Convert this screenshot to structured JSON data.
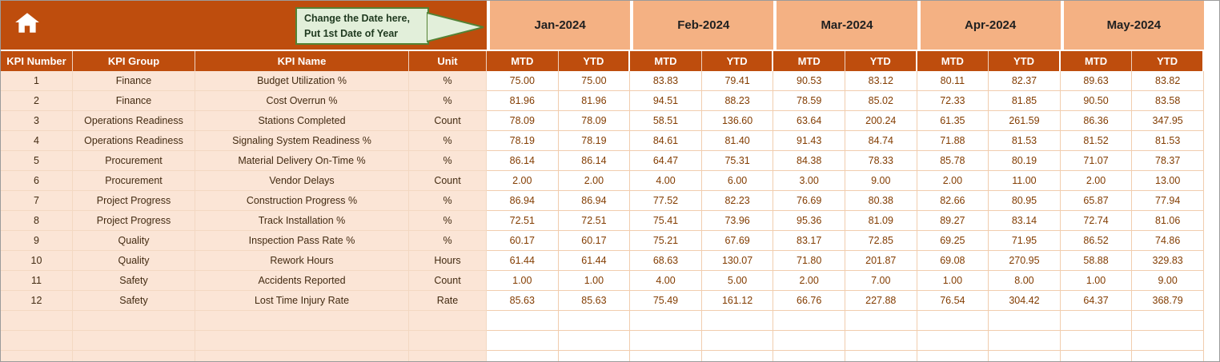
{
  "callout": {
    "line1": "Change the Date here,",
    "line2": "Put 1st Date of Year"
  },
  "months": [
    "Jan-2024",
    "Feb-2024",
    "Mar-2024",
    "Apr-2024",
    "May-2024"
  ],
  "column_headers": {
    "left": [
      "KPI Number",
      "KPI Group",
      "KPI Name",
      "Unit"
    ],
    "per_month": [
      "MTD",
      "YTD"
    ]
  },
  "rows": [
    {
      "kpi_number": "1",
      "kpi_group": "Finance",
      "kpi_name": "Budget Utilization %",
      "unit": "%",
      "values": [
        "75.00",
        "75.00",
        "83.83",
        "79.41",
        "90.53",
        "83.12",
        "80.11",
        "82.37",
        "89.63",
        "83.82"
      ]
    },
    {
      "kpi_number": "2",
      "kpi_group": "Finance",
      "kpi_name": "Cost Overrun %",
      "unit": "%",
      "values": [
        "81.96",
        "81.96",
        "94.51",
        "88.23",
        "78.59",
        "85.02",
        "72.33",
        "81.85",
        "90.50",
        "83.58"
      ]
    },
    {
      "kpi_number": "3",
      "kpi_group": "Operations Readiness",
      "kpi_name": "Stations Completed",
      "unit": "Count",
      "values": [
        "78.09",
        "78.09",
        "58.51",
        "136.60",
        "63.64",
        "200.24",
        "61.35",
        "261.59",
        "86.36",
        "347.95"
      ]
    },
    {
      "kpi_number": "4",
      "kpi_group": "Operations Readiness",
      "kpi_name": "Signaling System Readiness %",
      "unit": "%",
      "values": [
        "78.19",
        "78.19",
        "84.61",
        "81.40",
        "91.43",
        "84.74",
        "71.88",
        "81.53",
        "81.52",
        "81.53"
      ]
    },
    {
      "kpi_number": "5",
      "kpi_group": "Procurement",
      "kpi_name": "Material Delivery On-Time %",
      "unit": "%",
      "values": [
        "86.14",
        "86.14",
        "64.47",
        "75.31",
        "84.38",
        "78.33",
        "85.78",
        "80.19",
        "71.07",
        "78.37"
      ]
    },
    {
      "kpi_number": "6",
      "kpi_group": "Procurement",
      "kpi_name": "Vendor Delays",
      "unit": "Count",
      "values": [
        "2.00",
        "2.00",
        "4.00",
        "6.00",
        "3.00",
        "9.00",
        "2.00",
        "11.00",
        "2.00",
        "13.00"
      ]
    },
    {
      "kpi_number": "7",
      "kpi_group": "Project Progress",
      "kpi_name": "Construction Progress %",
      "unit": "%",
      "values": [
        "86.94",
        "86.94",
        "77.52",
        "82.23",
        "76.69",
        "80.38",
        "82.66",
        "80.95",
        "65.87",
        "77.94"
      ]
    },
    {
      "kpi_number": "8",
      "kpi_group": "Project Progress",
      "kpi_name": "Track Installation %",
      "unit": "%",
      "values": [
        "72.51",
        "72.51",
        "75.41",
        "73.96",
        "95.36",
        "81.09",
        "89.27",
        "83.14",
        "72.74",
        "81.06"
      ]
    },
    {
      "kpi_number": "9",
      "kpi_group": "Quality",
      "kpi_name": "Inspection Pass Rate %",
      "unit": "%",
      "values": [
        "60.17",
        "60.17",
        "75.21",
        "67.69",
        "83.17",
        "72.85",
        "69.25",
        "71.95",
        "86.52",
        "74.86"
      ]
    },
    {
      "kpi_number": "10",
      "kpi_group": "Quality",
      "kpi_name": "Rework Hours",
      "unit": "Hours",
      "values": [
        "61.44",
        "61.44",
        "68.63",
        "130.07",
        "71.80",
        "201.87",
        "69.08",
        "270.95",
        "58.88",
        "329.83"
      ]
    },
    {
      "kpi_number": "11",
      "kpi_group": "Safety",
      "kpi_name": "Accidents Reported",
      "unit": "Count",
      "values": [
        "1.00",
        "1.00",
        "4.00",
        "5.00",
        "2.00",
        "7.00",
        "1.00",
        "8.00",
        "1.00",
        "9.00"
      ]
    },
    {
      "kpi_number": "12",
      "kpi_group": "Safety",
      "kpi_name": "Lost Time Injury Rate",
      "unit": "Rate",
      "values": [
        "85.63",
        "85.63",
        "75.49",
        "161.12",
        "66.76",
        "227.88",
        "76.54",
        "304.42",
        "64.37",
        "368.79"
      ]
    }
  ],
  "empty_row_count": 3,
  "icons": {
    "home": "home-icon"
  },
  "colors": {
    "header_bg": "#BE4D0D",
    "month_bg": "#F4B183",
    "label_bg": "#FBE5D6",
    "callout_bg": "#E2EFDA",
    "callout_border": "#548235",
    "value_color": "#833C00"
  }
}
